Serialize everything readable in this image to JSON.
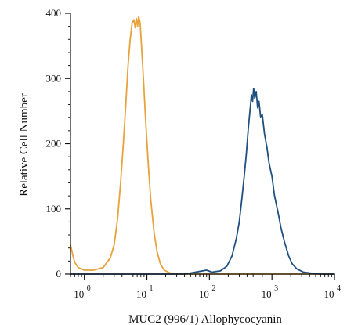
{
  "chart_data": {
    "type": "line",
    "xlabel": "MUC2 (996/1) Allophycocyanin",
    "ylabel": "Relative Cell Number",
    "x_scale": "log",
    "xlim": [
      0.6,
      10000
    ],
    "ylim": [
      0,
      400
    ],
    "x_ticks": [
      {
        "base": "10",
        "exp": "0",
        "value": 1
      },
      {
        "base": "10",
        "exp": "1",
        "value": 10
      },
      {
        "base": "10",
        "exp": "2",
        "value": 100
      },
      {
        "base": "10",
        "exp": "3",
        "value": 1000
      },
      {
        "base": "10",
        "exp": "4",
        "value": 10000
      }
    ],
    "y_ticks": [
      0,
      100,
      200,
      300,
      400
    ],
    "grid": false,
    "legend": "none",
    "series": [
      {
        "color": "#E8A23A",
        "points": [
          [
            0.6,
            45
          ],
          [
            0.65,
            30
          ],
          [
            0.7,
            18
          ],
          [
            0.8,
            10
          ],
          [
            1.0,
            6
          ],
          [
            1.4,
            6
          ],
          [
            2.0,
            10
          ],
          [
            2.6,
            25
          ],
          [
            3.0,
            45
          ],
          [
            3.4,
            85
          ],
          [
            3.8,
            140
          ],
          [
            4.2,
            200
          ],
          [
            4.6,
            260
          ],
          [
            5.0,
            320
          ],
          [
            5.4,
            360
          ],
          [
            5.8,
            385
          ],
          [
            6.2,
            390
          ],
          [
            6.5,
            378
          ],
          [
            6.8,
            392
          ],
          [
            7.1,
            380
          ],
          [
            7.4,
            395
          ],
          [
            7.8,
            385
          ],
          [
            8.2,
            350
          ],
          [
            8.8,
            300
          ],
          [
            9.5,
            240
          ],
          [
            10.5,
            170
          ],
          [
            11.5,
            115
          ],
          [
            13.0,
            65
          ],
          [
            14.5,
            35
          ],
          [
            16.5,
            15
          ],
          [
            19.0,
            6
          ],
          [
            23.0,
            2
          ],
          [
            30.0,
            0
          ],
          [
            10000,
            0
          ]
        ]
      },
      {
        "color": "#1F5080",
        "points": [
          [
            0.6,
            0
          ],
          [
            40,
            0
          ],
          [
            60,
            3
          ],
          [
            90,
            6
          ],
          [
            110,
            3
          ],
          [
            150,
            5
          ],
          [
            190,
            12
          ],
          [
            230,
            28
          ],
          [
            270,
            55
          ],
          [
            300,
            80
          ],
          [
            330,
            115
          ],
          [
            360,
            150
          ],
          [
            390,
            185
          ],
          [
            420,
            225
          ],
          [
            450,
            255
          ],
          [
            470,
            275
          ],
          [
            490,
            265
          ],
          [
            510,
            285
          ],
          [
            530,
            270
          ],
          [
            560,
            280
          ],
          [
            590,
            255
          ],
          [
            620,
            265
          ],
          [
            660,
            240
          ],
          [
            700,
            245
          ],
          [
            760,
            215
          ],
          [
            830,
            195
          ],
          [
            900,
            170
          ],
          [
            1000,
            150
          ],
          [
            1100,
            120
          ],
          [
            1250,
            95
          ],
          [
            1400,
            70
          ],
          [
            1600,
            48
          ],
          [
            1850,
            28
          ],
          [
            2100,
            16
          ],
          [
            2500,
            8
          ],
          [
            3200,
            3
          ],
          [
            4500,
            1
          ],
          [
            6000,
            0
          ],
          [
            10000,
            0
          ]
        ]
      }
    ]
  }
}
